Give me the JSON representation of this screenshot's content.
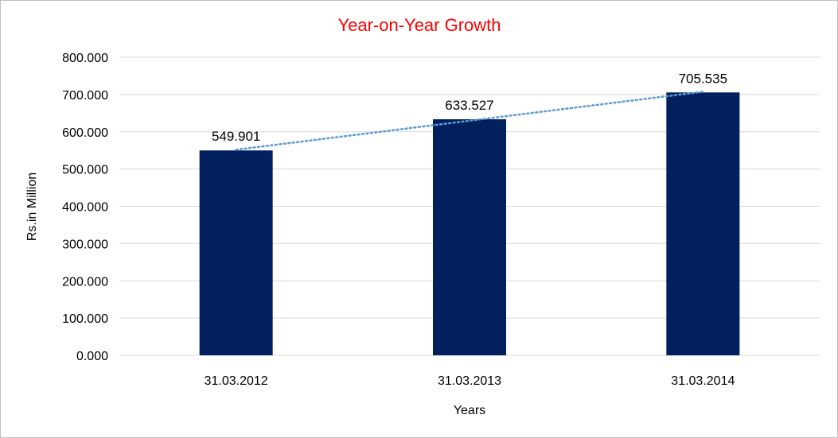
{
  "chart_data": {
    "type": "bar",
    "title": "Year-on-Year Growth",
    "title_color": "#ff0000",
    "xlabel": "Years",
    "ylabel": "Rs.in Million",
    "categories": [
      "31.03.2012",
      "31.03.2013",
      "31.03.2014"
    ],
    "values": [
      549.901,
      633.527,
      705.535
    ],
    "data_labels": [
      "549.901",
      "633.527",
      "705.535"
    ],
    "ylim": [
      0,
      800
    ],
    "yticks": [
      "0.000",
      "100.000",
      "200.000",
      "300.000",
      "400.000",
      "500.000",
      "600.000",
      "700.000",
      "800.000"
    ],
    "grid": true,
    "legend": "none",
    "bar_color": "#02205e",
    "trendline": {
      "type": "linear",
      "style": "dotted",
      "color": "#5b9bd5"
    }
  }
}
